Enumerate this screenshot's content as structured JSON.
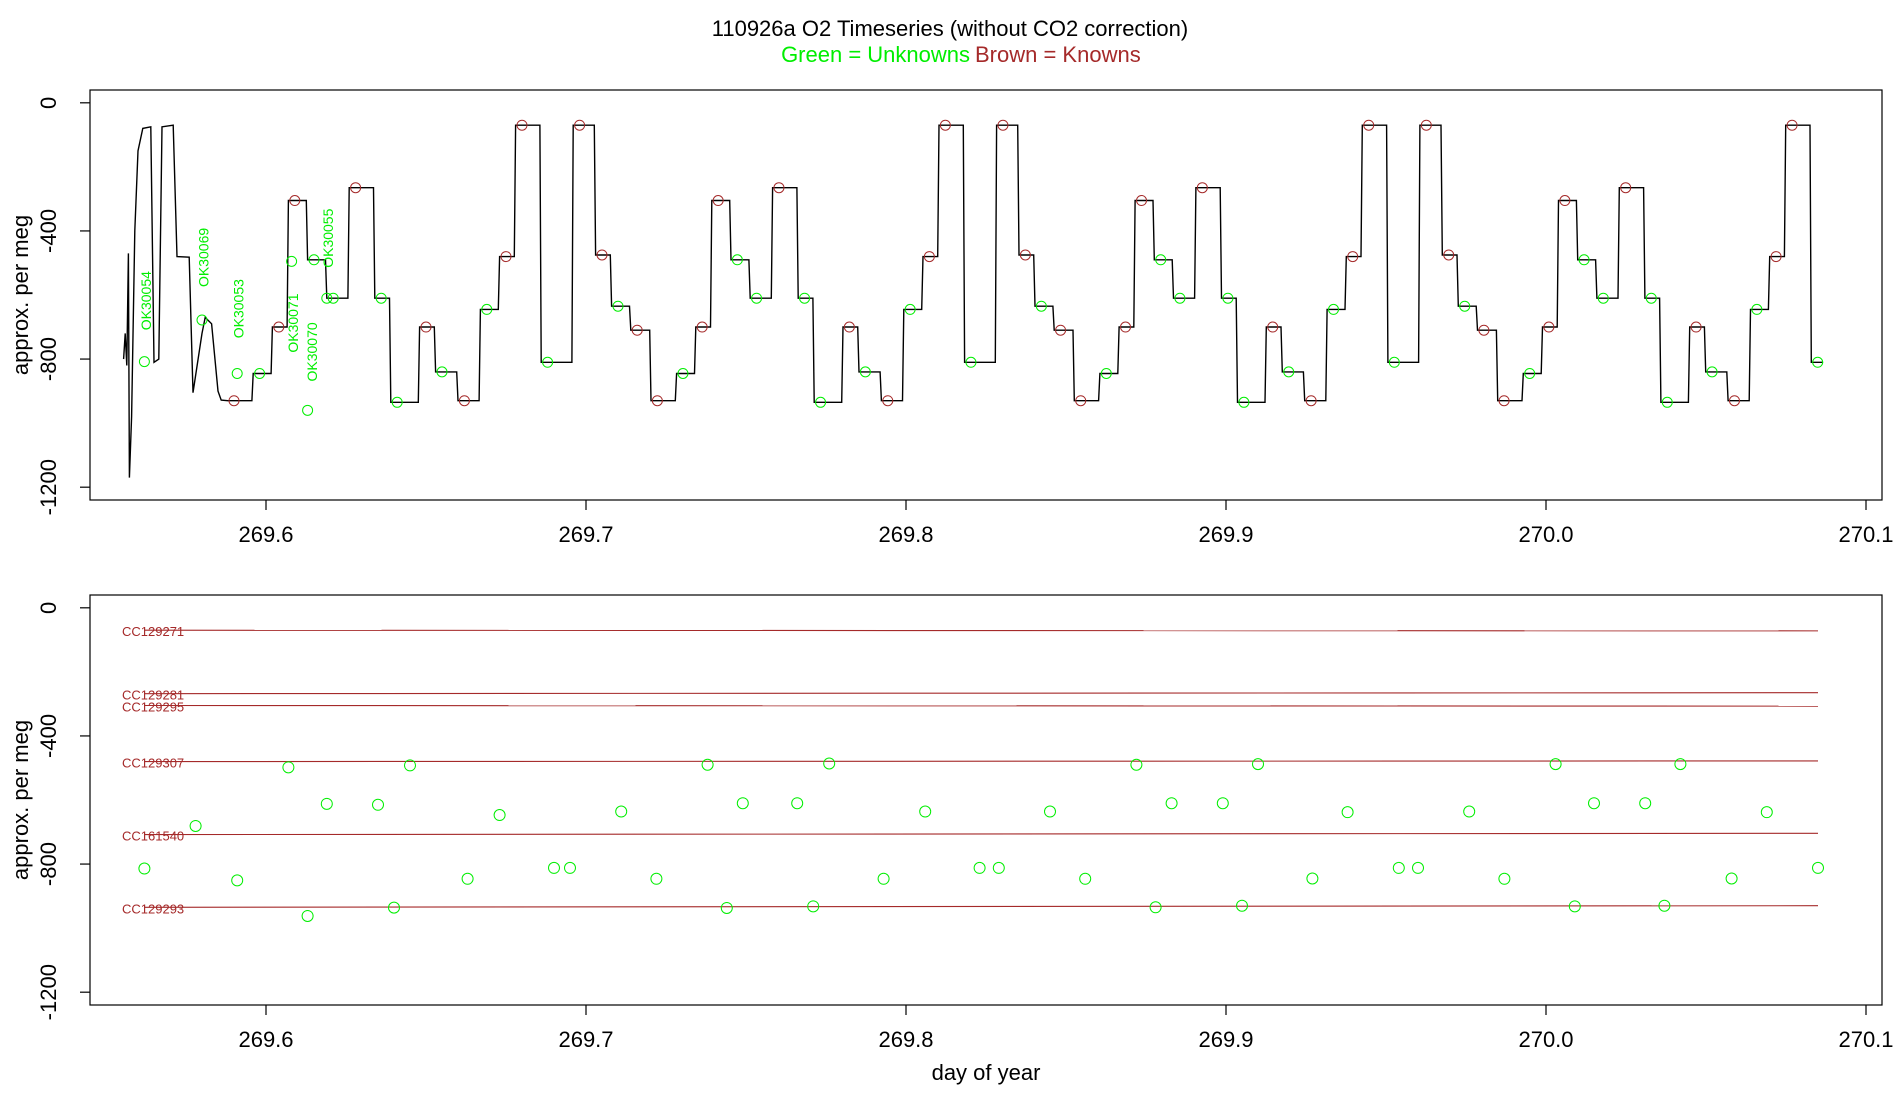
{
  "title": {
    "main": "110926a   O2 Timeseries (without CO2 correction)",
    "legend_green": "Green = Unknowns",
    "legend_brown": "Brown = Knowns"
  },
  "colors": {
    "unknown": "#00ee00",
    "known": "#a52a2a",
    "trace": "#000000",
    "axis": "#000000"
  },
  "chart_data": [
    {
      "type": "line",
      "name": "top-timeseries",
      "ylabel": "approx. per meg",
      "xlabel": "",
      "xlim": [
        269.545,
        270.105
      ],
      "ylim": [
        -1240,
        40
      ],
      "x_ticks": [
        269.6,
        269.7,
        269.8,
        269.9,
        270.0,
        270.1
      ],
      "x_tick_labels": [
        "269.6",
        "269.7",
        "269.8",
        "269.9",
        "270.0",
        "270.1"
      ],
      "y_ticks": [
        0,
        -400,
        -800,
        -1200
      ],
      "y_tick_labels": [
        "0",
        "-400",
        "-800",
        "-1200"
      ],
      "cycle": {
        "start": 269.588,
        "period": 0.1323,
        "steps": [
          {
            "dt": 0.0,
            "v": -930,
            "kind": "known"
          },
          {
            "dt": 0.008,
            "v": -845,
            "kind": "unknown"
          },
          {
            "dt": 0.014,
            "v": -700,
            "kind": "known"
          },
          {
            "dt": 0.019,
            "v": -305,
            "kind": "known"
          },
          {
            "dt": 0.025,
            "v": -490,
            "kind": "unknown"
          },
          {
            "dt": 0.031,
            "v": -610,
            "kind": "unknown"
          },
          {
            "dt": 0.038,
            "v": -265,
            "kind": "known"
          },
          {
            "dt": 0.046,
            "v": -610,
            "kind": "unknown"
          },
          {
            "dt": 0.051,
            "v": -935,
            "kind": "unknown"
          },
          {
            "dt": 0.06,
            "v": -700,
            "kind": "known"
          },
          {
            "dt": 0.065,
            "v": -840,
            "kind": "unknown"
          },
          {
            "dt": 0.072,
            "v": -930,
            "kind": "known"
          },
          {
            "dt": 0.079,
            "v": -645,
            "kind": "unknown"
          },
          {
            "dt": 0.085,
            "v": -480,
            "kind": "known"
          },
          {
            "dt": 0.09,
            "v": -70,
            "kind": "known"
          },
          {
            "dt": 0.098,
            "v": -810,
            "kind": "unknown"
          },
          {
            "dt": 0.108,
            "v": -70,
            "kind": "known"
          },
          {
            "dt": 0.115,
            "v": -475,
            "kind": "known"
          },
          {
            "dt": 0.12,
            "v": -635,
            "kind": "unknown"
          },
          {
            "dt": 0.126,
            "v": -710,
            "kind": "known"
          }
        ]
      },
      "label_markers": [
        {
          "x": 269.562,
          "y": -808,
          "kind": "unknown"
        },
        {
          "x": 269.58,
          "y": -678,
          "kind": "unknown"
        },
        {
          "x": 269.591,
          "y": -845,
          "kind": "unknown"
        },
        {
          "x": 269.608,
          "y": -495,
          "kind": "unknown"
        },
        {
          "x": 269.613,
          "y": -960,
          "kind": "unknown"
        },
        {
          "x": 269.619,
          "y": -610,
          "kind": "unknown"
        }
      ],
      "sample_labels": [
        {
          "text": "OK30054",
          "x": 269.564,
          "y": -710
        },
        {
          "text": "OK30069",
          "x": 269.582,
          "y": -575
        },
        {
          "text": "OK30053",
          "x": 269.593,
          "y": -735
        },
        {
          "text": "OK30071",
          "x": 269.61,
          "y": -780
        },
        {
          "text": "OK30070",
          "x": 269.616,
          "y": -870
        },
        {
          "text": "OK30055",
          "x": 269.621,
          "y": -515
        }
      ]
    },
    {
      "type": "scatter",
      "name": "bottom-reference",
      "ylabel": "approx. per meg",
      "xlabel": "day of year",
      "xlim": [
        269.545,
        270.105
      ],
      "ylim": [
        -1240,
        40
      ],
      "x_ticks": [
        269.6,
        269.7,
        269.8,
        269.9,
        270.0,
        270.1
      ],
      "x_tick_labels": [
        "269.6",
        "269.7",
        "269.8",
        "269.9",
        "270.0",
        "270.1"
      ],
      "y_ticks": [
        0,
        -400,
        -800,
        -1200
      ],
      "y_tick_labels": [
        "0",
        "-400",
        "-800",
        "-1200"
      ],
      "reference_lines": [
        {
          "name": "CC129271",
          "x": [
            269.562,
            270.085
          ],
          "y": [
            -70,
            -72
          ]
        },
        {
          "name": "CC129281",
          "x": [
            269.562,
            270.085
          ],
          "y": [
            -268,
            -265
          ]
        },
        {
          "name": "CC129295",
          "x": [
            269.562,
            270.085
          ],
          "y": [
            -305,
            -307
          ]
        },
        {
          "name": "CC129307",
          "x": [
            269.562,
            270.085
          ],
          "y": [
            -480,
            -478
          ]
        },
        {
          "name": "CC161540",
          "x": [
            269.562,
            270.085
          ],
          "y": [
            -708,
            -704
          ]
        },
        {
          "name": "CC129293",
          "x": [
            269.562,
            270.085
          ],
          "y": [
            -935,
            -930
          ]
        }
      ],
      "unknowns": {
        "x": [
          269.562,
          269.578,
          269.591,
          269.607,
          269.613,
          269.619,
          269.635,
          269.64,
          269.645,
          269.663,
          269.673,
          269.69,
          269.695,
          269.711,
          269.722,
          269.738,
          269.744,
          269.749,
          269.766,
          269.771,
          269.776,
          269.793,
          269.806,
          269.823,
          269.829,
          269.845,
          269.856,
          269.872,
          269.878,
          269.883,
          269.899,
          269.905,
          269.91,
          269.927,
          269.938,
          269.954,
          269.96,
          269.976,
          269.987,
          270.003,
          270.009,
          270.015,
          270.031,
          270.037,
          270.042,
          270.058,
          270.069,
          270.085
        ],
        "y": [
          -814,
          -681,
          -851,
          -498,
          -962,
          -612,
          -615,
          -936,
          -492,
          -846,
          -647,
          -812,
          -812,
          -636,
          -846,
          -490,
          -937,
          -610,
          -610,
          -932,
          -486,
          -846,
          -636,
          -812,
          -812,
          -636,
          -846,
          -490,
          -935,
          -610,
          -610,
          -930,
          -488,
          -845,
          -638,
          -812,
          -812,
          -636,
          -846,
          -488,
          -932,
          -610,
          -610,
          -930,
          -488,
          -845,
          -638,
          -812
        ]
      }
    }
  ]
}
